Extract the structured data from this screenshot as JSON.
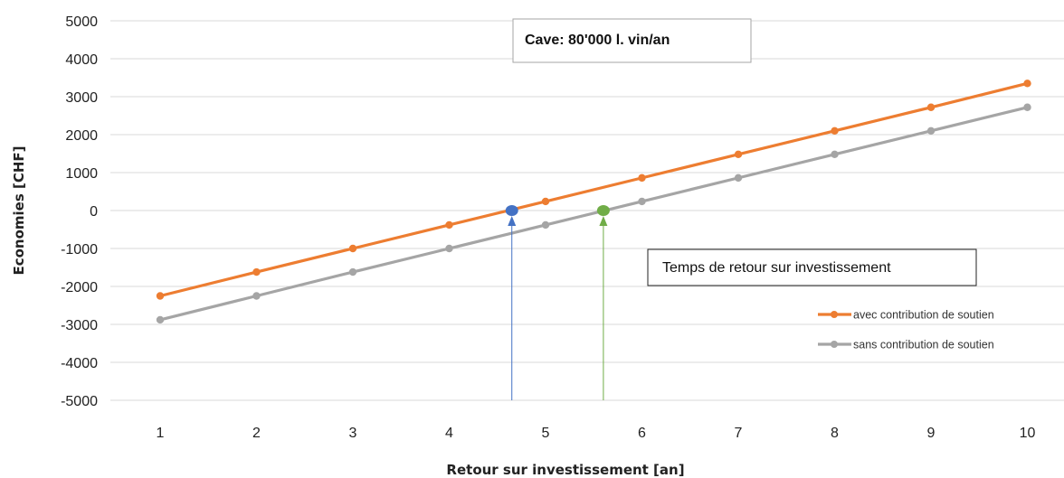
{
  "chart_data": {
    "type": "line",
    "xlabel": "Retour sur investissement [an]",
    "ylabel": "Economies [CHF]",
    "categories": [
      "1",
      "2",
      "3",
      "4",
      "5",
      "6",
      "7",
      "8",
      "9",
      "10"
    ],
    "x": [
      1,
      2,
      3,
      4,
      5,
      6,
      7,
      8,
      9,
      10
    ],
    "ylim": [
      -5000,
      5000
    ],
    "yticks": [
      "5000",
      "4000",
      "3000",
      "2000",
      "1000",
      "0",
      "-1000",
      "-2000",
      "-3000",
      "-4000",
      "-5000"
    ],
    "grid": true,
    "legend_position": "right",
    "series": [
      {
        "name": "avec contribution de soutien",
        "color": "#ED7D31",
        "values": [
          -2250,
          -1620,
          -1000,
          -380,
          240,
          860,
          1480,
          2100,
          2720,
          3350
        ]
      },
      {
        "name": "sans contribution de soutien",
        "color": "#A5A5A5",
        "values": [
          -2880,
          -2250,
          -1620,
          -1000,
          -380,
          240,
          860,
          1480,
          2100,
          2720
        ]
      }
    ],
    "break_even_points": [
      {
        "x": 4.65,
        "y": 0,
        "color": "#4472C4",
        "arrow_color": "#4472C4"
      },
      {
        "x": 5.6,
        "y": 0,
        "color": "#70AD47",
        "arrow_color": "#70AD47"
      }
    ],
    "annotations": {
      "title_box": "Cave: 80'000 l. vin/an",
      "note_box": "Temps de retour sur investissement"
    }
  }
}
